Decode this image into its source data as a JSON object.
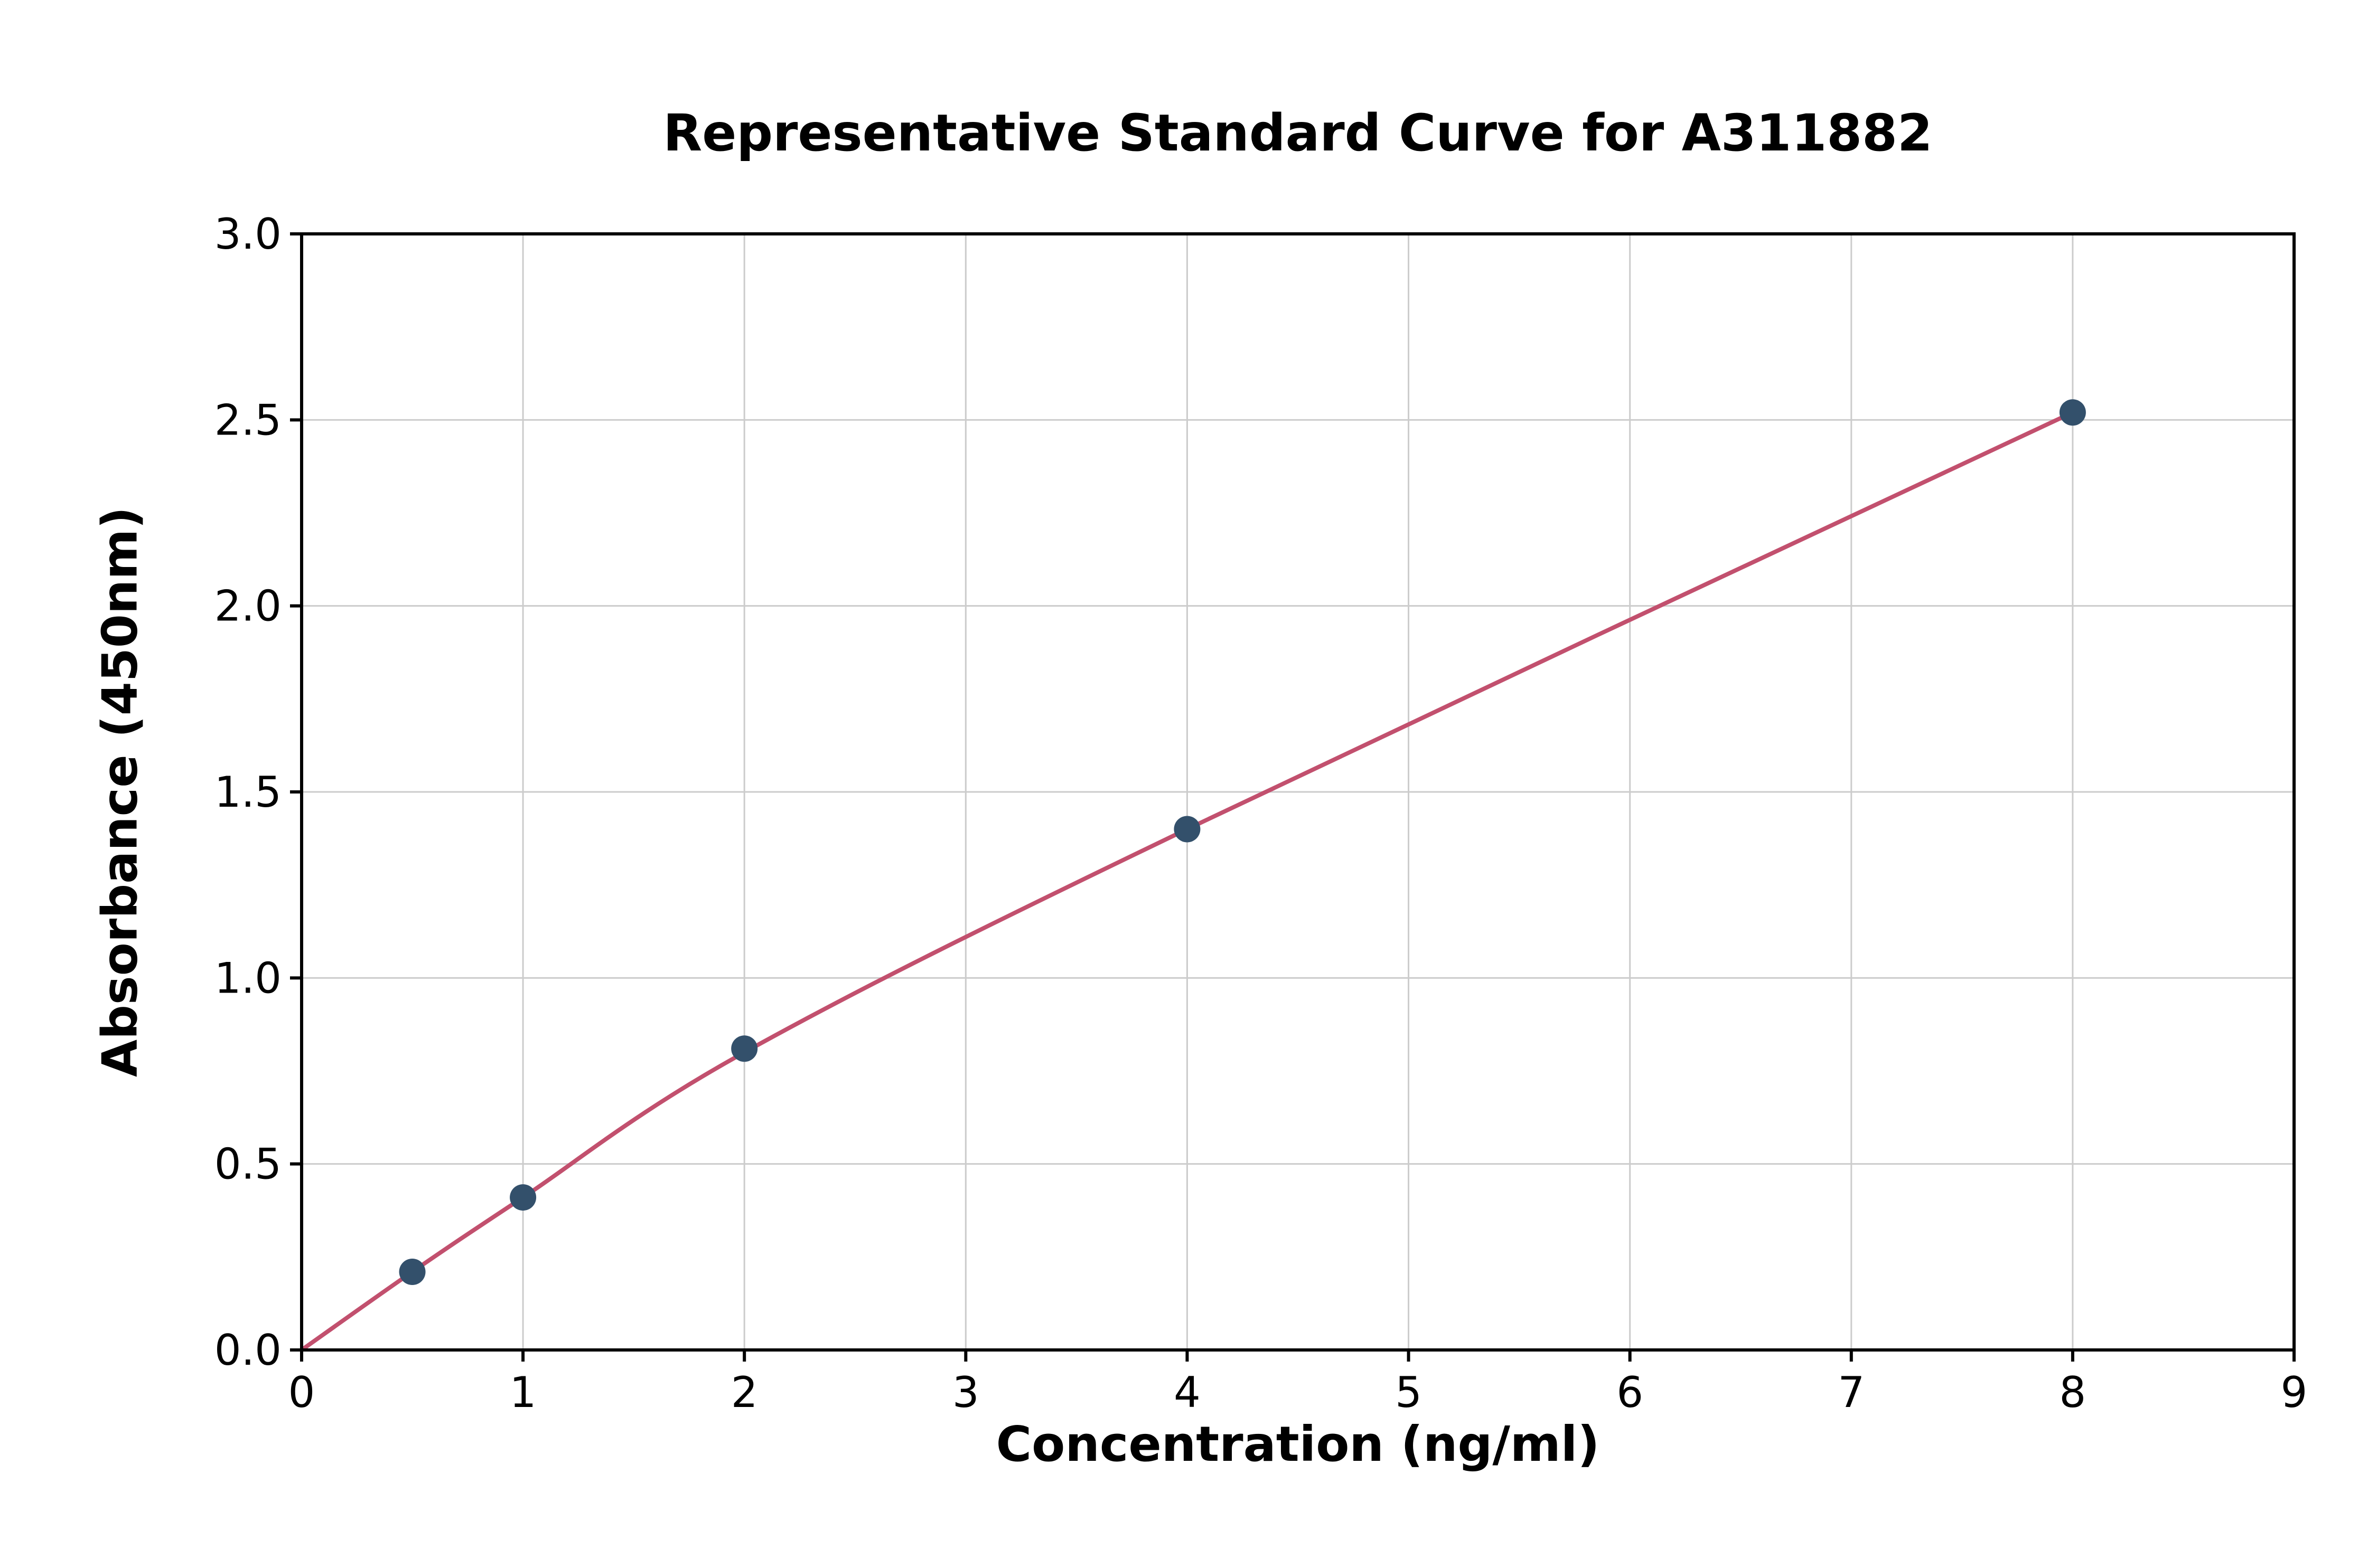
{
  "figure": {
    "background": "#ffffff"
  },
  "chart_data": {
    "type": "scatter",
    "title": "Representative Standard Curve for A311882",
    "xlabel": "Concentration (ng/ml)",
    "ylabel": "Absorbance (450nm)",
    "xlim": [
      0,
      9
    ],
    "ylim": [
      0,
      3.0
    ],
    "xticks": [
      0,
      1,
      2,
      3,
      4,
      5,
      6,
      7,
      8,
      9
    ],
    "xtick_labels": [
      "0",
      "1",
      "2",
      "3",
      "4",
      "5",
      "6",
      "7",
      "8",
      "9"
    ],
    "yticks": [
      0,
      0.5,
      1.0,
      1.5,
      2.0,
      2.5,
      3.0
    ],
    "ytick_labels": [
      "0.0",
      "0.5",
      "1.0",
      "1.5",
      "2.0",
      "2.5",
      "3.0"
    ],
    "grid": true,
    "legend": "none",
    "series": [
      {
        "name": "fit-curve",
        "type": "line",
        "line_color": "#c2506e",
        "points": [
          [
            0,
            0.0
          ],
          [
            0.5,
            0.21
          ],
          [
            1,
            0.41
          ],
          [
            2,
            0.8
          ],
          [
            4,
            1.4
          ],
          [
            8,
            2.52
          ]
        ]
      },
      {
        "name": "standards",
        "type": "scatter",
        "marker_color": "#33506b",
        "points": [
          [
            0.5,
            0.21
          ],
          [
            1,
            0.41
          ],
          [
            2,
            0.81
          ],
          [
            4,
            1.4
          ],
          [
            8,
            2.52
          ]
        ]
      }
    ],
    "colors": {
      "grid": "#cccccc",
      "axis": "#000000",
      "text": "#000000"
    }
  }
}
